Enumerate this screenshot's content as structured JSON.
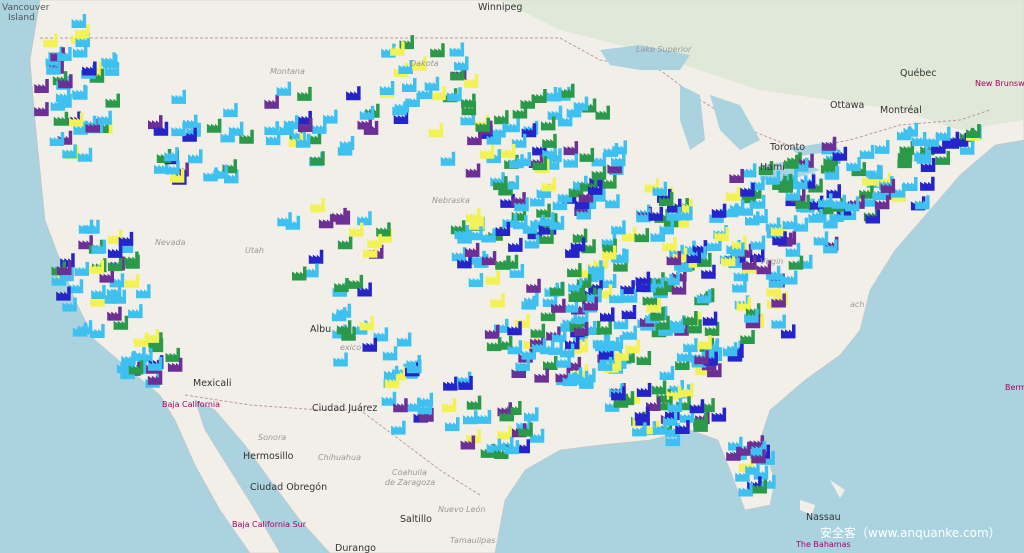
{
  "map": {
    "labels": {
      "winnipeg": "Winnipeg",
      "vancouver": "Vancouver",
      "island": "Island",
      "montana": "Montana",
      "dakota": "Dakota",
      "lake_superior": "Lake Superior",
      "quebec": "Québec",
      "ottawa": "Ottawa",
      "montreal": "Montréal",
      "toronto": "Toronto",
      "hamilton": "Hami",
      "new_brunswick": "New Brunswick",
      "nebraska": "Nebraska",
      "nevada": "Nevada",
      "utah": "Utah",
      "albuquerque": "Albu",
      "mexico_state": "exico",
      "virginia": "Virgin",
      "beach": "ach",
      "mexicali": "Mexicali",
      "baja_california": "Baja California",
      "sonora": "Sonora",
      "hermosillo": "Hermosillo",
      "chihuahua": "Chihuahua",
      "ciudad_juarez": "Ciudad Juárez",
      "ciudad_obregon": "Ciudad Obregón",
      "coahuila": "Coahuila",
      "de_zaragoza": "de Zaragoza",
      "saltillo": "Saltillo",
      "nuevo_leon": "Nuevo León",
      "durango": "Durango",
      "baja_california_sur": "Baja California Sur",
      "tamaulipas": "Tamaulipas",
      "nassau": "Nassau",
      "bahamas": "The Bahamas",
      "bermuda": "Berm"
    },
    "watermark": "安全客（www.anquanke.com）"
  }
}
